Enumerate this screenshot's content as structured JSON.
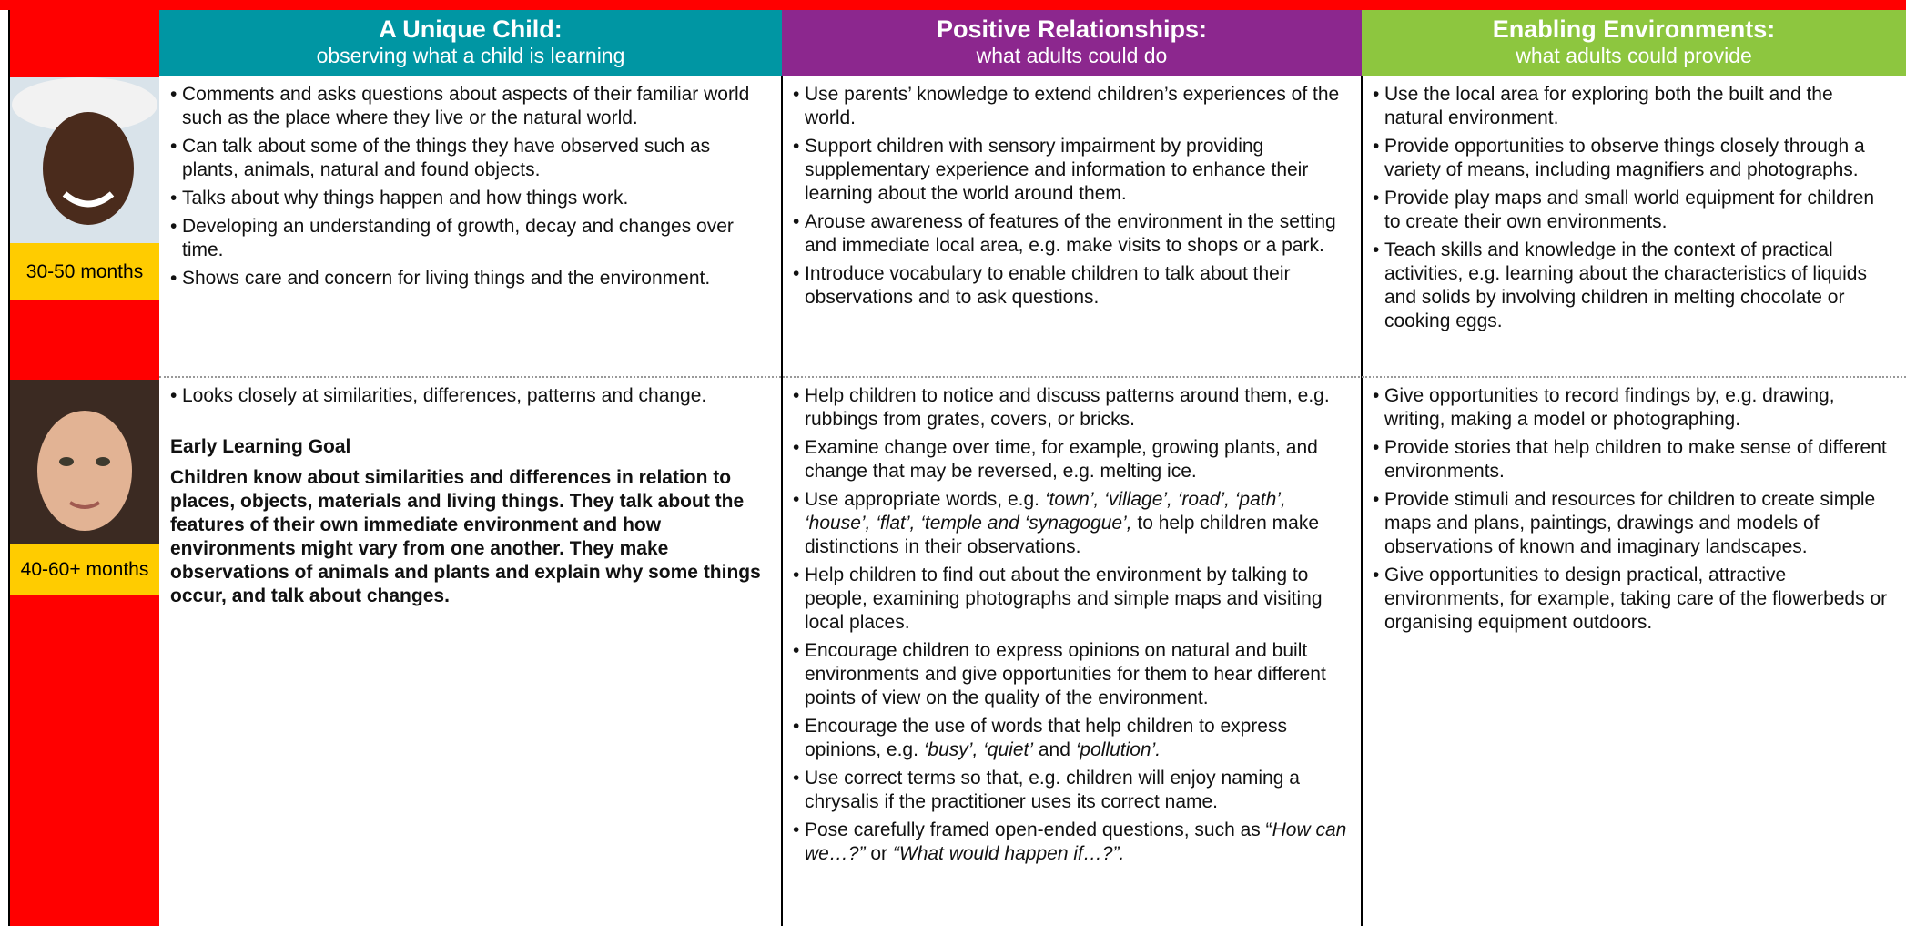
{
  "headers": [
    {
      "title": "A Unique Child:",
      "subtitle": "observing what a child is learning",
      "color": "#0096a3"
    },
    {
      "title": "Positive Relationships:",
      "subtitle": "what adults could do",
      "color": "#8c278e"
    },
    {
      "title": "Enabling Environments:",
      "subtitle": "what adults could provide",
      "color": "#8dc63f"
    }
  ],
  "rows": [
    {
      "age": "30-50 months",
      "cells": [
        {
          "bullets": [
            "Comments and asks questions about aspects of their familiar world such as the place where they live or the natural world.",
            "Can talk about some of the things they have observed such as plants, animals, natural and found objects.",
            "Talks about why things happen and how things work.",
            "Developing an understanding of growth, decay and changes over time.",
            "Shows care and concern for living things and the environment."
          ]
        },
        {
          "bullets": [
            "Use parents’ knowledge to extend children’s experiences of the world.",
            "Support children with sensory impairment by providing supplementary experience and information to enhance their learning about the world around them.",
            "Arouse awareness of features of the environment in the setting and immediate local area, e.g. make visits to shops or a park.",
            "Introduce vocabulary to enable children to talk about their observations and to ask questions."
          ]
        },
        {
          "bullets": [
            "Use the local area for exploring both the built and the natural environment.",
            "Provide opportunities to observe things closely through a variety of means, including magnifiers and photographs.",
            "Provide play maps and small world equipment for children to create their own environments.",
            "Teach skills and knowledge in the context of practical activities, e.g. learning about the characteristics of liquids and solids by involving children in melting chocolate or cooking eggs."
          ]
        }
      ]
    },
    {
      "age": "40-60+ months",
      "cells": [
        {
          "bullets": [
            "Looks closely at similarities, differences, patterns and change."
          ],
          "goal_heading": "Early Learning Goal",
          "goal_text": "Children know about similarities and differences in relation to places, objects, materials and living things. They talk about the features of their own immediate environment and how environments might vary from one another. They make observations of animals and plants and explain why some things occur, and talk about changes."
        },
        {
          "bullets": [
            "Help children to notice and discuss patterns around them, e.g. rubbings from grates, covers, or bricks.",
            "Examine change over time, for example, growing plants, and change that may be reversed, e.g. melting ice.",
            [
              "Use appropriate words, e.g. ",
              {
                "text": "‘town’, ‘village’, ‘road’, ‘path’, ‘house’, ‘flat’, ‘temple and ‘synagogue’,",
                "italic": true
              },
              " to help children make distinctions in their observations."
            ],
            "Help children to find out about the environment by talking to people, examining photographs and simple maps and visiting local places.",
            "Encourage children to express opinions on natural and built environments and give opportunities for them to hear different points of view on the quality of the environment.",
            [
              "Encourage the use of words that help children to express opinions, e.g. ",
              {
                "text": "‘busy’, ‘quiet’",
                "italic": true
              },
              " and ",
              {
                "text": "‘pollution’.",
                "italic": true
              }
            ],
            "Use correct terms so that, e.g. children will enjoy naming a chrysalis if the practitioner uses its correct name.",
            [
              "Pose carefully framed open-ended questions, such as “",
              {
                "text": "How can we…?”",
                "italic": true
              },
              " or ",
              {
                "text": "“What would happen if…?”.",
                "italic": true
              }
            ]
          ]
        },
        {
          "bullets": [
            "Give opportunities to record findings by, e.g. drawing, writing, making a model or photographing.",
            "Provide stories that help children to make sense of different environments.",
            "Provide stimuli and resources for children to create simple maps and plans, paintings, drawings and models of observations of known and imaginary landscapes.",
            "Give opportunities to design practical, attractive environments, for example, taking care of the flowerbeds or organising equipment outdoors."
          ]
        }
      ]
    }
  ]
}
